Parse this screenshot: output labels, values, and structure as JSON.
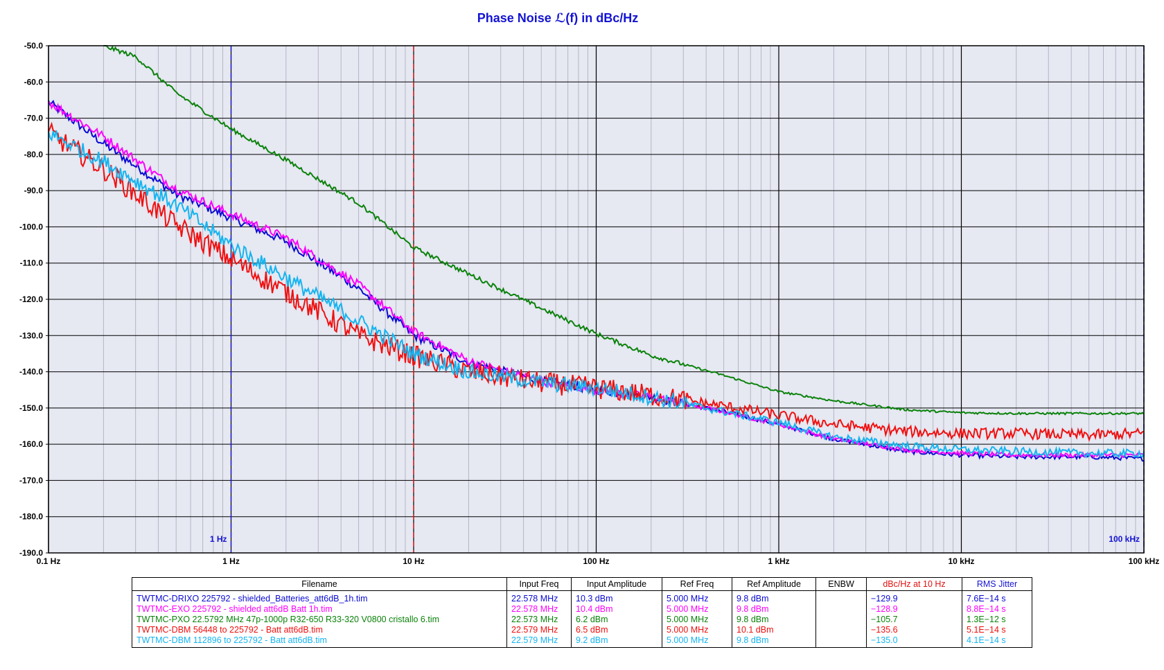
{
  "chart_data": {
    "type": "line",
    "title": "Phase Noise ℒ(f) in dBc/Hz",
    "x_scale": "log",
    "xlim": [
      0.1,
      100000
    ],
    "ylim": [
      -190,
      -50
    ],
    "grid": true,
    "x_tick_labels": [
      "0.1 Hz",
      "1 Hz",
      "10 Hz",
      "100 Hz",
      "1 kHz",
      "10 kHz",
      "100 kHz"
    ],
    "x_tick_values": [
      0.1,
      1,
      10,
      100,
      1000,
      10000,
      100000
    ],
    "y_tick_values": [
      -50,
      -60,
      -70,
      -80,
      -90,
      -100,
      -110,
      -120,
      -130,
      -140,
      -150,
      -160,
      -170,
      -180,
      -190
    ],
    "y_tick_labels": [
      "-50.0",
      "-60.0",
      "-70.0",
      "-80.0",
      "-90.0",
      "-100.0",
      "-110.0",
      "-120.0",
      "-130.0",
      "-140.0",
      "-150.0",
      "-160.0",
      "-170.0",
      "-180.0",
      "-190.0"
    ],
    "markers": [
      {
        "x": 1,
        "label": "1 Hz",
        "color": "#1414d2"
      },
      {
        "x": 10,
        "label": "",
        "color": "#e01010"
      },
      {
        "x": 100000,
        "label": "100 kHz",
        "color": "#1414d2"
      }
    ],
    "series": [
      {
        "name": "TWTMC-DRIXO  225792  - shielded_Batteries_att6dB_1h.tim",
        "color": "#0a0ad2",
        "x": [
          0.1,
          0.2,
          0.5,
          1,
          2,
          5,
          10,
          20,
          50,
          100,
          200,
          500,
          1000,
          2000,
          5000,
          10000,
          20000,
          50000,
          100000
        ],
        "y": [
          -65.5,
          -77,
          -91,
          -97.5,
          -104,
          -117,
          -129.9,
          -137.5,
          -142.5,
          -145,
          -147,
          -151,
          -154.5,
          -158.5,
          -162,
          -163,
          -163.5,
          -163.5,
          -164
        ]
      },
      {
        "name": "TWTMC-EXO  225792  - shielded att6dB Batt 1h.tim",
        "color": "#ff00ff",
        "x": [
          0.1,
          0.2,
          0.5,
          1,
          2,
          5,
          10,
          20,
          50,
          100,
          200,
          500,
          1000,
          2000,
          5000,
          10000,
          20000,
          50000,
          100000
        ],
        "y": [
          -65.5,
          -75,
          -89.5,
          -96.5,
          -103,
          -116,
          -128.9,
          -137,
          -142.5,
          -145,
          -147,
          -151,
          -154.5,
          -158.5,
          -161.5,
          -162.5,
          -163,
          -163,
          -163
        ]
      },
      {
        "name": "TWTMC-PXO  22.5792  MHz  47p-1000p  R32-650  R33-320  V0800  cristallo  6.tim",
        "color": "#0a820a",
        "x": [
          0.2,
          0.3,
          0.5,
          1,
          2,
          5,
          10,
          20,
          50,
          100,
          200,
          500,
          1000,
          2000,
          5000,
          10000,
          20000,
          50000,
          100000
        ],
        "y": [
          -50,
          -53,
          -63,
          -73,
          -81.5,
          -93.5,
          -105.7,
          -113,
          -122.5,
          -129.5,
          -135.5,
          -141,
          -145.5,
          -148,
          -150.5,
          -151.3,
          -151.5,
          -151.5,
          -151.5
        ]
      },
      {
        "name": "TWTMC-DBM  56448 to 225792  - Batt att6dB.tim",
        "color": "#f01010",
        "x": [
          0.1,
          0.2,
          0.5,
          1,
          2,
          5,
          10,
          20,
          50,
          100,
          200,
          500,
          1000,
          2000,
          5000,
          10000,
          20000,
          50000,
          100000
        ],
        "y": [
          -74,
          -84,
          -99.5,
          -109,
          -118,
          -130,
          -135.6,
          -140,
          -143,
          -144.5,
          -146.5,
          -149.5,
          -152,
          -154.5,
          -156.5,
          -157,
          -157,
          -157.5,
          -157
        ]
      },
      {
        "name": "TWTMC-DBM  112896 to 225792 - Batt att6dB.tim",
        "color": "#14b4f0",
        "x": [
          0.1,
          0.2,
          0.5,
          1,
          2,
          5,
          10,
          20,
          50,
          100,
          200,
          500,
          1000,
          2000,
          5000,
          10000,
          20000,
          50000,
          100000
        ],
        "y": [
          -74,
          -82,
          -94,
          -105,
          -114,
          -126,
          -135,
          -140,
          -143,
          -144.5,
          -147,
          -151,
          -154,
          -158,
          -160.5,
          -161.5,
          -162,
          -162.5,
          -162.5
        ]
      }
    ]
  },
  "table": {
    "headers": [
      "Filename",
      "Input Freq",
      "Input Amplitude",
      "Ref Freq",
      "Ref Amplitude",
      "ENBW",
      "dBc/Hz at 10 Hz",
      "RMS Jitter"
    ],
    "header_colors": [
      "#000000",
      "#000000",
      "#000000",
      "#000000",
      "#000000",
      "#000000",
      "#e01010",
      "#1414d2"
    ],
    "rows": [
      {
        "color": "#0a0ad2",
        "cells": [
          "TWTMC-DRIXO  225792  - shielded_Batteries_att6dB_1h.tim",
          "22.578 MHz",
          "10.3 dBm",
          "5.000 MHz",
          "9.8 dBm",
          "",
          "−129.9",
          "7.6E−14 s"
        ]
      },
      {
        "color": "#ff00ff",
        "cells": [
          "TWTMC-EXO  225792  - shielded att6dB Batt 1h.tim",
          "22.578 MHz",
          "10.4 dBm",
          "5.000 MHz",
          "9.8 dBm",
          "",
          "−128.9",
          "8.8E−14 s"
        ]
      },
      {
        "color": "#0a820a",
        "cells": [
          "TWTMC-PXO  22.5792  MHz  47p-1000p  R32-650  R33-320  V0800  cristallo  6.tim",
          "22.573 MHz",
          "6.2 dBm",
          "5.000 MHz",
          "9.8 dBm",
          "",
          "−105.7",
          "1.3E−12 s"
        ]
      },
      {
        "color": "#f01010",
        "cells": [
          "TWTMC-DBM  56448 to 225792  - Batt att6dB.tim",
          "22.579 MHz",
          "6.5 dBm",
          "5.000 MHz",
          "10.1 dBm",
          "",
          "−135.6",
          "5.1E−14 s"
        ]
      },
      {
        "color": "#14b4f0",
        "cells": [
          "TWTMC-DBM  112896 to 225792 - Batt att6dB.tim",
          "22.579 MHz",
          "9.2 dBm",
          "5.000 MHz",
          "9.8 dBm",
          "",
          "−135.0",
          "4.1E−14 s"
        ]
      }
    ]
  }
}
